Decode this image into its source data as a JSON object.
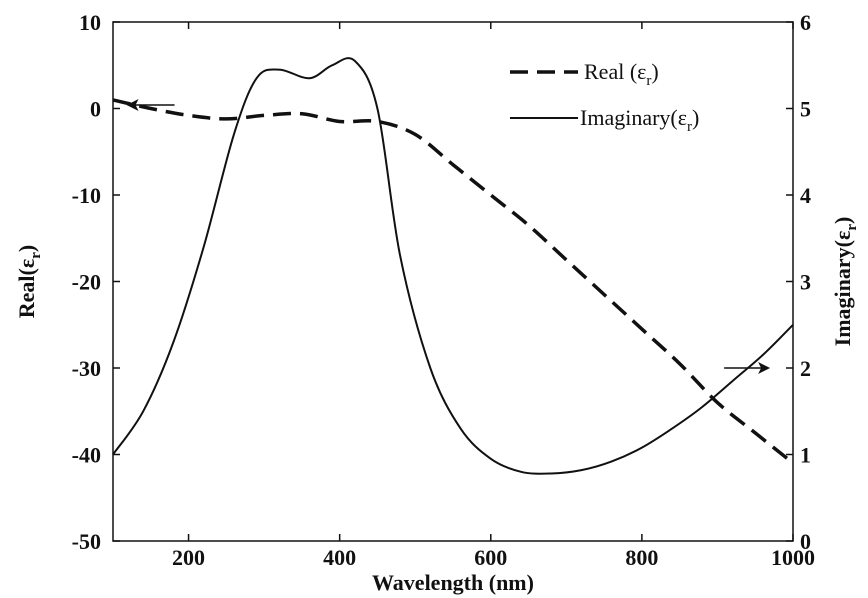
{
  "chart_data": {
    "type": "line",
    "title": "",
    "xlabel": "Wavelength (nm)",
    "ylabel_left": "Real(ε",
    "ylabel_left_sub": "r",
    "ylabel_left_close": ")",
    "ylabel_right": "Imaginary(ε",
    "ylabel_right_sub": "r",
    "ylabel_right_close": ")",
    "xlim": [
      100,
      1000
    ],
    "ylim_left": [
      -50,
      10
    ],
    "ylim_right": [
      0,
      6
    ],
    "x_ticks": [
      200,
      400,
      600,
      800,
      1000
    ],
    "x_tick_labels": [
      "200",
      "400",
      "600",
      "800",
      "1000"
    ],
    "y_left_ticks": [
      10,
      0,
      -10,
      -20,
      -30,
      -40,
      -50
    ],
    "y_left_tick_labels": [
      "10",
      "0",
      "-10",
      "-20",
      "-30",
      "-40",
      "-50"
    ],
    "y_right_ticks": [
      6,
      5,
      4,
      3,
      2,
      1,
      0
    ],
    "y_right_tick_labels": [
      "6",
      "5",
      "4",
      "3",
      "2",
      "1",
      "0"
    ],
    "grid": false,
    "legend_position": "top-right",
    "series": [
      {
        "name": "Real (ε",
        "name_sub": "r",
        "name_close": ")",
        "axis": "left",
        "style": "dashed",
        "color": "#111111",
        "x": [
          100,
          150,
          200,
          250,
          300,
          350,
          400,
          450,
          500,
          550,
          600,
          650,
          700,
          750,
          800,
          850,
          900,
          950,
          1000
        ],
        "y": [
          1,
          0,
          -0.8,
          -1.2,
          -0.8,
          -0.6,
          -1.5,
          -1.5,
          -3,
          -6.5,
          -10,
          -13.5,
          -17.5,
          -21.5,
          -25.5,
          -29.5,
          -34,
          -37.5,
          -41
        ]
      },
      {
        "name": "Imaginary(ε",
        "name_sub": "r",
        "name_close": ")",
        "axis": "right",
        "style": "solid",
        "color": "#111111",
        "x": [
          100,
          140,
          180,
          220,
          260,
          290,
          320,
          360,
          390,
          420,
          450,
          480,
          520,
          560,
          600,
          640,
          680,
          720,
          760,
          800,
          840,
          880,
          920,
          960,
          1000
        ],
        "y": [
          1,
          1.5,
          2.3,
          3.4,
          4.7,
          5.35,
          5.45,
          5.35,
          5.5,
          5.55,
          5.0,
          3.3,
          2.0,
          1.3,
          0.95,
          0.8,
          0.78,
          0.82,
          0.92,
          1.08,
          1.3,
          1.55,
          1.85,
          2.15,
          2.5
        ]
      }
    ]
  }
}
